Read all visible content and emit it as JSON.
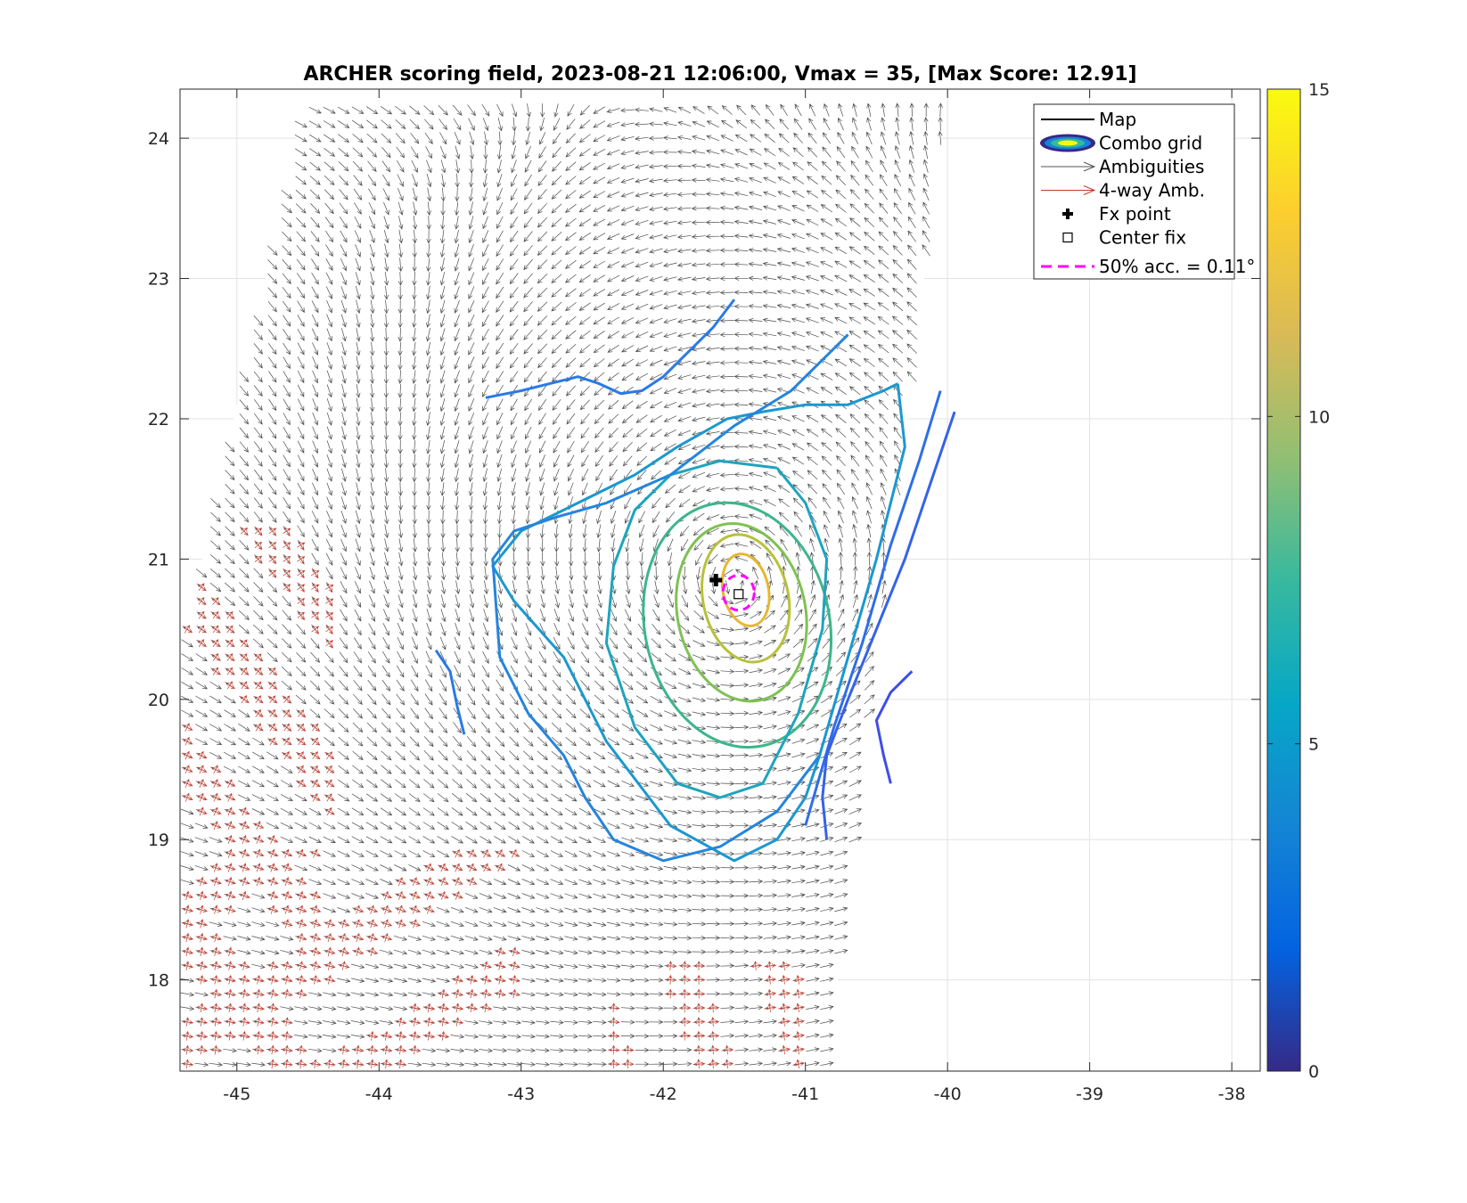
{
  "chart_data": {
    "type": "contour",
    "title": "ARCHER scoring field, 2023-08-21 12:06:00, Vmax = 35, [Max Score: 12.91]",
    "xlim": [
      -45.4,
      -37.8
    ],
    "ylim": [
      17.35,
      24.35
    ],
    "xticks": [
      -45,
      -44,
      -43,
      -42,
      -41,
      -40,
      -39,
      -38
    ],
    "yticks": [
      18,
      19,
      20,
      21,
      22,
      23,
      24
    ],
    "x_tick_labels": [
      "-45",
      "-44",
      "-43",
      "-42",
      "-41",
      "-40",
      "-39",
      "-38"
    ],
    "y_tick_labels": [
      "18",
      "19",
      "20",
      "21",
      "22",
      "23",
      "24"
    ],
    "grid": true,
    "colorbar": {
      "min": 0,
      "max": 15,
      "ticks": [
        0,
        5,
        10,
        15
      ],
      "tick_labels": [
        "0",
        "5",
        "10",
        "15"
      ],
      "colormap": "parula"
    },
    "legend": {
      "position": "top-right",
      "entries": [
        {
          "label": "Map",
          "style": "line",
          "color": "#000000"
        },
        {
          "label": "Combo grid",
          "style": "contour-ellipse"
        },
        {
          "label": "Ambiguities",
          "style": "arrow",
          "color": "#555555"
        },
        {
          "label": "4-way Amb.",
          "style": "arrow",
          "color": "#c0392b"
        },
        {
          "label": "Fx point",
          "style": "plus-marker",
          "color": "#000000"
        },
        {
          "label": "Center fix",
          "style": "square-marker",
          "color": "#000000"
        },
        {
          "label": "50% acc. = 0.11°",
          "style": "dashed",
          "color": "#ff00ff"
        }
      ]
    },
    "fx_point": {
      "lon": -41.63,
      "lat": 20.85
    },
    "center_fix": {
      "lon": -41.47,
      "lat": 20.75
    },
    "acc_circle": {
      "lon": -41.47,
      "lat": 20.76,
      "radius_deg": 0.11,
      "label": "50% acc. = 0.11°"
    },
    "center_for_arrows": {
      "lon": -41.5,
      "lat": 20.8
    },
    "swath": {
      "lon": [
        -44.5,
        -40.0,
        -40.85,
        -45.4,
        -45.4
      ],
      "lat": [
        24.35,
        24.35,
        17.35,
        17.35,
        20.3
      ]
    },
    "contours": [
      {
        "level": 12.0,
        "color": "#e6b733",
        "center": [
          -41.42,
          20.78
        ],
        "rx": 0.16,
        "ry": 0.26
      },
      {
        "level": 10.5,
        "color": "#b8c13a",
        "center": [
          -41.42,
          20.72
        ],
        "rx": 0.3,
        "ry": 0.46
      },
      {
        "level": 9.3,
        "color": "#7fc153",
        "center": [
          -41.45,
          20.62
        ],
        "rx": 0.45,
        "ry": 0.64
      },
      {
        "level": 8.4,
        "color": "#3db68a",
        "center": [
          -41.48,
          20.53
        ],
        "rx": 0.65,
        "ry": 0.88
      },
      {
        "level": 7.2,
        "color": "#1ea4bd",
        "lon": [
          -41.2,
          -41.0,
          -40.85,
          -40.88,
          -41.05,
          -41.3,
          -41.6,
          -41.9,
          -42.2,
          -42.4,
          -42.35,
          -42.2,
          -41.95,
          -41.6,
          -41.2
        ],
        "lat": [
          21.65,
          21.4,
          21.0,
          20.5,
          19.9,
          19.4,
          19.3,
          19.4,
          19.8,
          20.4,
          20.95,
          21.35,
          21.6,
          21.7,
          21.65
        ]
      },
      {
        "level": 6.4,
        "color": "#1b98cf",
        "lon": [
          -40.35,
          -40.3,
          -40.5,
          -40.7,
          -40.9,
          -41.0,
          -41.2,
          -41.5,
          -41.95,
          -42.4,
          -42.7,
          -43.05,
          -43.2,
          -43.0,
          -42.6,
          -42.2,
          -41.9,
          -41.55,
          -41.3,
          -41.0,
          -40.7,
          -40.45,
          -40.35
        ],
        "lat": [
          22.25,
          21.8,
          21.0,
          20.3,
          19.6,
          19.3,
          19.0,
          18.85,
          19.1,
          19.7,
          20.3,
          20.7,
          20.95,
          21.2,
          21.4,
          21.6,
          21.8,
          22.0,
          22.05,
          22.1,
          22.1,
          22.2,
          22.25
        ]
      },
      {
        "level": 5.6,
        "color": "#2485dd",
        "lon": [
          -40.7,
          -41.1,
          -41.5,
          -41.95,
          -42.4,
          -42.75,
          -43.05,
          -43.2,
          -43.15,
          -42.95,
          -42.7,
          -42.55,
          -42.35,
          -42.0,
          -41.6,
          -41.2,
          -40.9
        ],
        "lat": [
          22.6,
          22.2,
          21.95,
          21.6,
          21.4,
          21.3,
          21.2,
          21.0,
          20.3,
          19.9,
          19.6,
          19.3,
          19.0,
          18.85,
          18.95,
          19.2,
          19.6
        ]
      },
      {
        "level": 5.2,
        "color": "#2a7ae6",
        "lon": [
          -43.6,
          -43.5,
          -43.45,
          -43.4
        ],
        "lat": [
          20.35,
          20.2,
          19.95,
          19.75
        ]
      },
      {
        "level": 5.0,
        "color": "#2a7ae6",
        "lon": [
          -43.25,
          -43.0,
          -42.8,
          -42.6,
          -42.45,
          -42.3,
          -42.15,
          -42.0,
          -41.8,
          -41.65,
          -41.5
        ],
        "lat": [
          22.15,
          22.2,
          22.25,
          22.3,
          22.25,
          22.18,
          22.2,
          22.3,
          22.5,
          22.65,
          22.85
        ]
      },
      {
        "level": 4.7,
        "color": "#2e6ee8",
        "lon": [
          -40.05,
          -40.2,
          -40.4,
          -40.6,
          -40.8,
          -41.0
        ],
        "lat": [
          22.2,
          21.7,
          21.1,
          20.4,
          19.8,
          19.1
        ]
      },
      {
        "level": 4.2,
        "color": "#3562e8",
        "lon": [
          -39.95,
          -40.1,
          -40.3,
          -40.5,
          -40.7,
          -40.85,
          -40.88,
          -40.85
        ],
        "lat": [
          22.05,
          21.6,
          21.0,
          20.5,
          20.0,
          19.6,
          19.3,
          19.0
        ]
      },
      {
        "level": 3.6,
        "color": "#3f4ee6",
        "lon": [
          -40.25,
          -40.4,
          -40.5,
          -40.45,
          -40.4
        ],
        "lat": [
          20.2,
          20.05,
          19.85,
          19.6,
          19.4
        ]
      }
    ],
    "wind_vectors": "synthetic rotational field around center with ambiguity arrows"
  }
}
